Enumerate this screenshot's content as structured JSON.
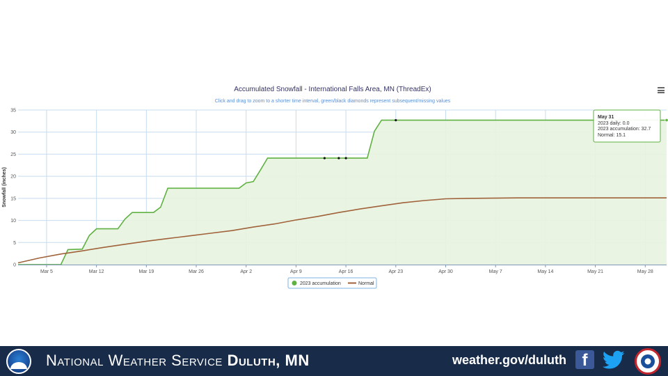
{
  "chart_data": {
    "type": "area",
    "title": "Accumulated Snowfall - International Falls Area, MN (ThreadEx)",
    "subtitle": "Click and drag to zoom to a shorter time interval, green/black diamonds represent subsequent/missing values",
    "xlabel": "",
    "ylabel": "Snowfall (inches)",
    "ylim": [
      0,
      35
    ],
    "yticks": [
      0,
      5,
      10,
      15,
      20,
      25,
      30,
      35
    ],
    "xlim": [
      "Mar 1",
      "May 31"
    ],
    "xticks": [
      "Mar 5",
      "Mar 12",
      "Mar 19",
      "Mar 26",
      "Apr 2",
      "Apr 9",
      "Apr 16",
      "Apr 23",
      "Apr 30",
      "May 7",
      "May 14",
      "May 21",
      "May 28"
    ],
    "grid": true,
    "legend_position": "bottom-center",
    "series": [
      {
        "name": "2023 accumulation",
        "color": "#5fb142",
        "fill": "#e8f3df",
        "points": [
          [
            "Mar 1",
            0
          ],
          [
            "Mar 7",
            0
          ],
          [
            "Mar 8",
            3.4
          ],
          [
            "Mar 10",
            3.5
          ],
          [
            "Mar 11",
            6.6
          ],
          [
            "Mar 12",
            8.1
          ],
          [
            "Mar 15",
            8.1
          ],
          [
            "Mar 16",
            10.3
          ],
          [
            "Mar 17",
            11.8
          ],
          [
            "Mar 20",
            11.8
          ],
          [
            "Mar 21",
            13
          ],
          [
            "Mar 22",
            17.3
          ],
          [
            "Mar 31",
            17.3
          ],
          [
            "Apr 1",
            17.3
          ],
          [
            "Apr 2",
            18.5
          ],
          [
            "Apr 3",
            18.8
          ],
          [
            "Apr 4",
            21.4
          ],
          [
            "Apr 5",
            24.1
          ],
          [
            "Apr 19",
            24.1
          ],
          [
            "Apr 20",
            30.2
          ],
          [
            "Apr 21",
            32.7
          ],
          [
            "May 31",
            32.7
          ]
        ],
        "markers": [
          {
            "x": "Apr 13",
            "y": 24.1,
            "kind": "missing"
          },
          {
            "x": "Apr 15",
            "y": 24.1,
            "kind": "missing"
          },
          {
            "x": "Apr 16",
            "y": 24.1,
            "kind": "missing"
          },
          {
            "x": "Apr 23",
            "y": 32.7,
            "kind": "missing"
          }
        ]
      },
      {
        "name": "Normal",
        "color": "#a0623a",
        "points": [
          [
            "Mar 1",
            0.4
          ],
          [
            "Mar 4",
            1.5
          ],
          [
            "Mar 7",
            2.4
          ],
          [
            "Mar 10",
            3.1
          ],
          [
            "Mar 13",
            3.9
          ],
          [
            "Mar 16",
            4.6
          ],
          [
            "Mar 19",
            5.3
          ],
          [
            "Mar 22",
            5.9
          ],
          [
            "Mar 25",
            6.5
          ],
          [
            "Mar 28",
            7.1
          ],
          [
            "Mar 31",
            7.7
          ],
          [
            "Apr 3",
            8.5
          ],
          [
            "Apr 6",
            9.2
          ],
          [
            "Apr 9",
            10.1
          ],
          [
            "Apr 12",
            10.9
          ],
          [
            "Apr 15",
            11.8
          ],
          [
            "Apr 18",
            12.6
          ],
          [
            "Apr 21",
            13.3
          ],
          [
            "Apr 24",
            14
          ],
          [
            "Apr 27",
            14.5
          ],
          [
            "Apr 30",
            14.9
          ],
          [
            "May 3",
            15
          ],
          [
            "May 10",
            15.1
          ],
          [
            "May 31",
            15.1
          ]
        ]
      }
    ],
    "tooltip": {
      "date": "May 31",
      "lines": [
        "2023 daily: 0.0",
        "2023 accumulation: 32.7",
        "Normal: 15.1"
      ]
    }
  },
  "footer": {
    "org_prefix": "National Weather Service",
    "office": "Duluth, MN",
    "url": "weather.gov/duluth",
    "facebook_glyph": "f"
  },
  "icons": {
    "menu": "hamburger-menu-icon",
    "noaa": "noaa-logo-icon",
    "facebook": "facebook-icon",
    "twitter": "twitter-icon",
    "nws": "nws-logo-icon"
  }
}
